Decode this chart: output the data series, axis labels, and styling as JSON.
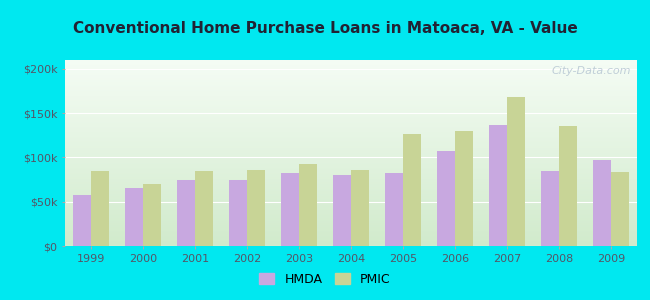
{
  "title": "Conventional Home Purchase Loans in Matoaca, VA - Value",
  "years": [
    1999,
    2000,
    2001,
    2002,
    2003,
    2004,
    2005,
    2006,
    2007,
    2008,
    2009
  ],
  "hmda": [
    58000,
    65000,
    74000,
    75000,
    82000,
    80000,
    82000,
    107000,
    137000,
    85000,
    97000
  ],
  "pmic": [
    85000,
    70000,
    85000,
    86000,
    93000,
    86000,
    126000,
    130000,
    168000,
    136000,
    84000
  ],
  "hmda_color": "#c8a8e0",
  "pmic_color": "#c8d496",
  "outer_background": "#00e8f0",
  "ylim": [
    0,
    210000
  ],
  "yticks": [
    0,
    50000,
    100000,
    150000,
    200000
  ],
  "ytick_labels": [
    "$0",
    "$50k",
    "$100k",
    "$150k",
    "$200k"
  ],
  "legend_labels": [
    "HMDA",
    "PMIC"
  ],
  "watermark": "City-Data.com",
  "bar_width": 0.35
}
